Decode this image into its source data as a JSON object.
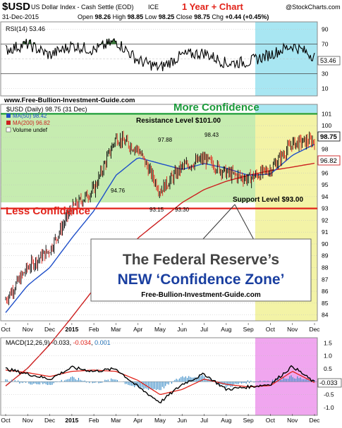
{
  "header": {
    "symbol": "$USD",
    "description": "US Dollar Index - Cash Settle (EOD)",
    "exchange": "ICE",
    "badge": "1 Year + Chart",
    "watermark": "@StockCharts.com",
    "date": "31-Dec-2015",
    "open_label": "Open",
    "open": "98.26",
    "high_label": "High",
    "high": "98.85",
    "low_label": "Low",
    "low": "98.25",
    "close_label": "Close",
    "close": "98.75",
    "chg_label": "Chg",
    "chg": "+0.44 (+0.45%)"
  },
  "rsi_panel": {
    "label": "RSI(14) 53.46",
    "value_box": "53.46",
    "ticks": [
      "90",
      "70",
      "50",
      "30",
      "10"
    ],
    "shade_color": "#3b7a3b"
  },
  "price_panel": {
    "site": "www.Free-Bullion-Investment-Guide.com",
    "title": "$USD (Daily) 98.75 (31 Dec)",
    "legend_ma50": "MA(50) 98.42",
    "legend_ma200": "MA(200) 96.82",
    "legend_volume": "Volume undef",
    "more_confidence": "More Confidence",
    "less_confidence": "Less Confidence",
    "resistance": "Resistance Level $101.00",
    "support": "Support Level $93.00",
    "annotations": [
      "94.76",
      "97.88",
      "98.43",
      "93.15",
      "93.30"
    ],
    "price_box": "98.75",
    "ma200_box": "96.82",
    "callout_line1": "The Federal Reserve’s",
    "callout_line2": "NEW ‘Confidence Zone’",
    "callout_site": "Free-Bullion-Investment-Guide.com",
    "ticks": [
      "101",
      "100",
      "99",
      "98",
      "97",
      "96",
      "95",
      "94",
      "93",
      "92",
      "91",
      "90",
      "89",
      "88",
      "87",
      "86",
      "85",
      "84"
    ],
    "colors": {
      "zone_green": "#c6ecb0",
      "zone_blue": "#a8e6f2",
      "zone_yellow": "#f3f3a6",
      "resistance": "#1a9a3a",
      "support": "#e2231a",
      "ma50": "#1f4fc9",
      "ma200": "#cc1f1f"
    }
  },
  "x_axis": {
    "labels": [
      "Oct",
      "Nov",
      "Dec",
      "2015",
      "Feb",
      "Mar",
      "Apr",
      "May",
      "Jun",
      "Jul",
      "Aug",
      "Sep",
      "Oct",
      "Nov",
      "Dec"
    ]
  },
  "macd_panel": {
    "label": "MACD(12,26,9)",
    "value1": "-0.033",
    "value2": "-0.034",
    "value3": "0.001",
    "value_box": "-0.033",
    "ticks": [
      "1.5",
      "1.0",
      "0.5",
      "0.0",
      "-0.5",
      "-1.0"
    ],
    "zone_color": "#f0a6ef"
  },
  "chart_data": {
    "type": "line",
    "x": [
      "2014-10",
      "2014-11",
      "2014-12",
      "2015-01",
      "2015-02",
      "2015-03",
      "2015-04",
      "2015-05",
      "2015-06",
      "2015-07",
      "2015-08",
      "2015-09",
      "2015-10",
      "2015-11",
      "2015-12"
    ],
    "ylim": [
      83.5,
      101.8
    ],
    "series": [
      {
        "values": [
          85.3,
          88.0,
          89.5,
          93.0,
          94.6,
          99.0,
          98.0,
          94.5,
          96.5,
          97.2,
          96.0,
          95.5,
          96.3,
          98.5,
          98.75
        ]
      }
    ],
    "moving_averages": [
      {
        "name": "MA(50)",
        "values": [
          84.2,
          86.5,
          88.0,
          90.5,
          92.8,
          95.8,
          97.3,
          96.8,
          96.3,
          96.8,
          96.4,
          95.8,
          95.9,
          97.5,
          98.42
        ]
      },
      {
        "name": "MA(200)",
        "values": [
          78.0,
          79.5,
          81.5,
          83.8,
          86.2,
          88.6,
          90.5,
          92.0,
          93.5,
          94.6,
          95.3,
          95.8,
          96.2,
          96.5,
          96.82
        ]
      }
    ],
    "reference_lines": {
      "resistance": 101.0,
      "support": 93.0
    },
    "rsi": {
      "ylim": [
        0,
        100
      ],
      "values": [
        62,
        70,
        55,
        68,
        62,
        74,
        48,
        38,
        55,
        58,
        44,
        46,
        56,
        68,
        53.46
      ]
    },
    "macd": {
      "ylim": [
        -1.3,
        1.7
      ],
      "macd": [
        0.5,
        0.3,
        0.1,
        0.55,
        0.4,
        0.5,
        -0.2,
        -0.8,
        -0.1,
        0.3,
        -0.3,
        -0.2,
        -0.1,
        0.6,
        -0.033
      ],
      "signal": [
        0.45,
        0.35,
        0.2,
        0.4,
        0.45,
        0.4,
        0.05,
        -0.5,
        -0.3,
        0.1,
        -0.1,
        -0.2,
        -0.15,
        0.4,
        -0.034
      ]
    }
  }
}
